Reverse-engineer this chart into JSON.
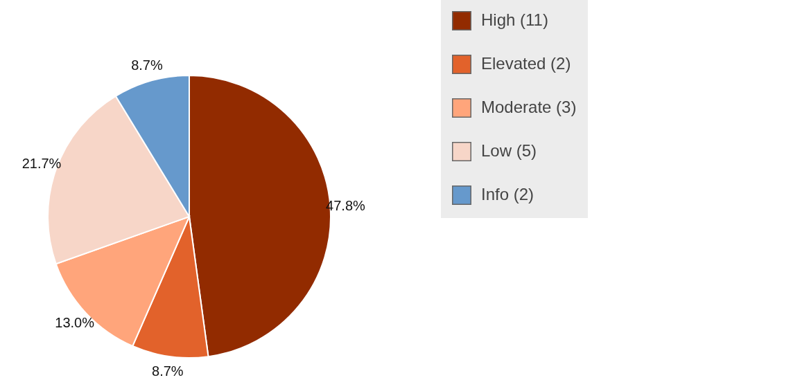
{
  "chart_data": {
    "type": "pie",
    "categories": [
      "High (11)",
      "Elevated (2)",
      "Moderate (3)",
      "Low (5)",
      "Info (2)"
    ],
    "values": [
      47.8,
      8.7,
      13.0,
      21.7,
      8.7
    ],
    "colors": [
      "#922b00",
      "#e2622b",
      "#ffa57b",
      "#f7d6c8",
      "#6699cc"
    ],
    "value_labels": [
      "47.8%",
      "8.7%",
      "13.0%",
      "21.7%",
      "8.7%"
    ],
    "legend": "top right"
  }
}
